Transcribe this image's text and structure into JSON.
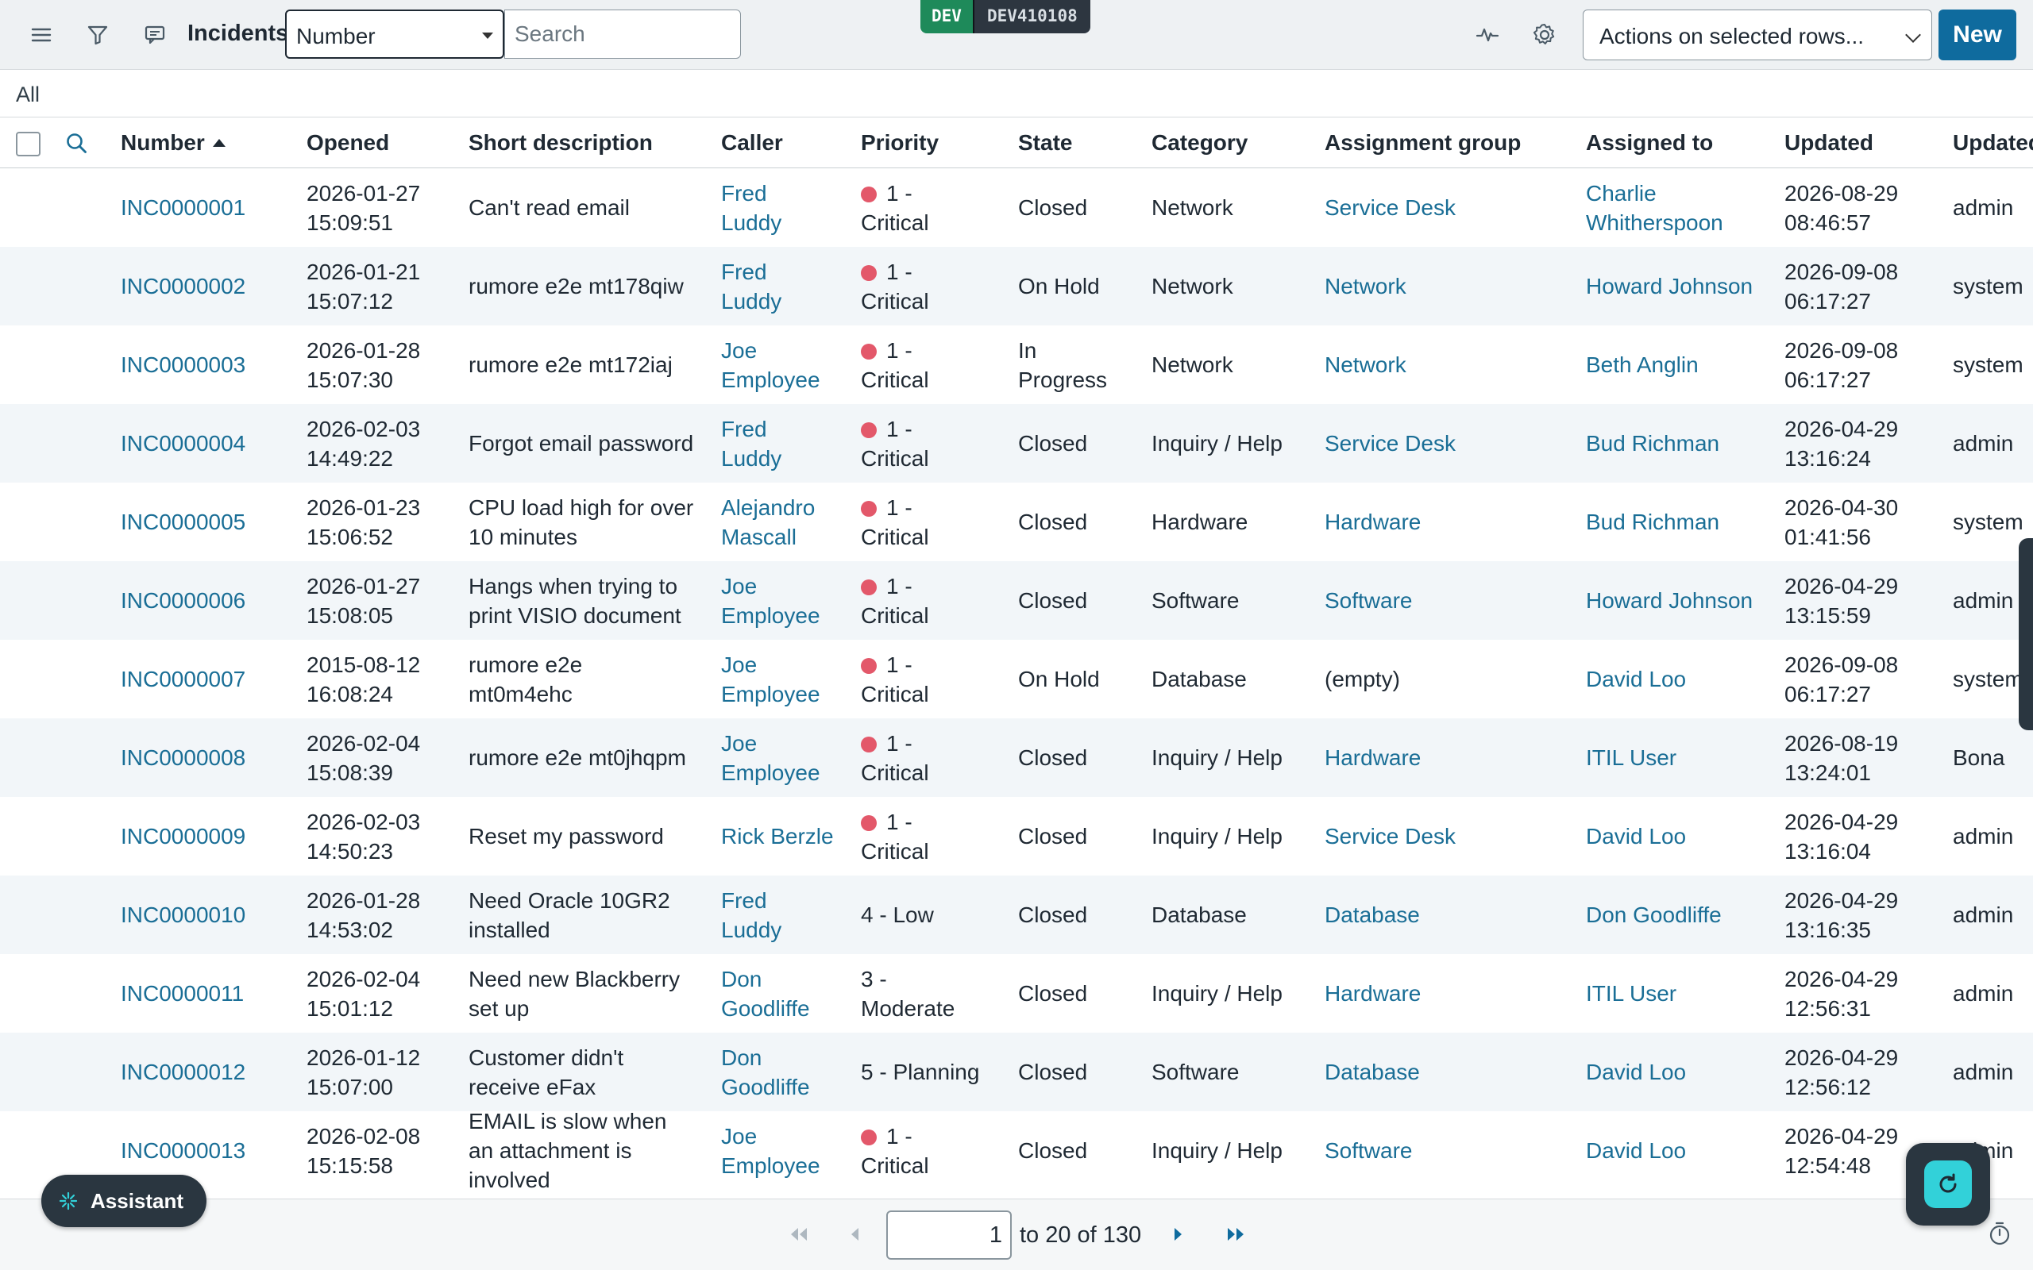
{
  "header": {
    "title": "Incidents",
    "search_field": "Number",
    "search_placeholder": "Search",
    "env_label": "DEV",
    "instance_label": "DEV410108",
    "actions_label": "Actions on selected rows...",
    "new_label": "New"
  },
  "breadcrumb": "All",
  "columns": {
    "number": "Number",
    "opened": "Opened",
    "short_description": "Short description",
    "caller": "Caller",
    "priority": "Priority",
    "state": "State",
    "category": "Category",
    "assignment_group": "Assignment group",
    "assigned_to": "Assigned to",
    "updated": "Updated",
    "updated_by": "Updated"
  },
  "rows": [
    {
      "number": "INC0000001",
      "opened": [
        "2026-01-27",
        "15:09:51"
      ],
      "desc": [
        "Can't read email"
      ],
      "caller": [
        "Fred",
        "Luddy"
      ],
      "priority": [
        "1 -",
        "Critical"
      ],
      "critical": true,
      "state": [
        "Closed"
      ],
      "category": "Network",
      "group": "Service Desk",
      "group_link": true,
      "assigned": [
        "Charlie",
        "Whitherspoon"
      ],
      "updated": [
        "2026-08-29",
        "08:46:57"
      ],
      "updated_by": "admin"
    },
    {
      "number": "INC0000002",
      "opened": [
        "2026-01-21",
        "15:07:12"
      ],
      "desc": [
        "rumore e2e mt178qiw"
      ],
      "caller": [
        "Fred",
        "Luddy"
      ],
      "priority": [
        "1 -",
        "Critical"
      ],
      "critical": true,
      "state": [
        "On Hold"
      ],
      "category": "Network",
      "group": "Network",
      "group_link": true,
      "assigned": [
        "Howard Johnson"
      ],
      "updated": [
        "2026-09-08",
        "06:17:27"
      ],
      "updated_by": "system"
    },
    {
      "number": "INC0000003",
      "opened": [
        "2026-01-28",
        "15:07:30"
      ],
      "desc": [
        "rumore e2e mt172iaj"
      ],
      "caller": [
        "Joe",
        "Employee"
      ],
      "priority": [
        "1 -",
        "Critical"
      ],
      "critical": true,
      "state": [
        "In",
        "Progress"
      ],
      "category": "Network",
      "group": "Network",
      "group_link": true,
      "assigned": [
        "Beth Anglin"
      ],
      "updated": [
        "2026-09-08",
        "06:17:27"
      ],
      "updated_by": "system"
    },
    {
      "number": "INC0000004",
      "opened": [
        "2026-02-03",
        "14:49:22"
      ],
      "desc": [
        "Forgot email password"
      ],
      "caller": [
        "Fred",
        "Luddy"
      ],
      "priority": [
        "1 -",
        "Critical"
      ],
      "critical": true,
      "state": [
        "Closed"
      ],
      "category": "Inquiry / Help",
      "group": "Service Desk",
      "group_link": true,
      "assigned": [
        "Bud Richman"
      ],
      "updated": [
        "2026-04-29",
        "13:16:24"
      ],
      "updated_by": "admin"
    },
    {
      "number": "INC0000005",
      "opened": [
        "2026-01-23",
        "15:06:52"
      ],
      "desc": [
        "CPU load high for over",
        "10 minutes"
      ],
      "caller": [
        "Alejandro",
        "Mascall"
      ],
      "priority": [
        "1 -",
        "Critical"
      ],
      "critical": true,
      "state": [
        "Closed"
      ],
      "category": "Hardware",
      "group": "Hardware",
      "group_link": true,
      "assigned": [
        "Bud Richman"
      ],
      "updated": [
        "2026-04-30",
        "01:41:56"
      ],
      "updated_by": "system"
    },
    {
      "number": "INC0000006",
      "opened": [
        "2026-01-27",
        "15:08:05"
      ],
      "desc": [
        "Hangs when trying to",
        "print VISIO document"
      ],
      "caller": [
        "Joe",
        "Employee"
      ],
      "priority": [
        "1 -",
        "Critical"
      ],
      "critical": true,
      "state": [
        "Closed"
      ],
      "category": "Software",
      "group": "Software",
      "group_link": true,
      "assigned": [
        "Howard Johnson"
      ],
      "updated": [
        "2026-04-29",
        "13:15:59"
      ],
      "updated_by": "admin"
    },
    {
      "number": "INC0000007",
      "opened": [
        "2015-08-12",
        "16:08:24"
      ],
      "desc": [
        "rumore e2e",
        "mt0m4ehc"
      ],
      "caller": [
        "Joe",
        "Employee"
      ],
      "priority": [
        "1 -",
        "Critical"
      ],
      "critical": true,
      "state": [
        "On Hold"
      ],
      "category": "Database",
      "group": "(empty)",
      "group_link": false,
      "assigned": [
        "David Loo"
      ],
      "updated": [
        "2026-09-08",
        "06:17:27"
      ],
      "updated_by": "system"
    },
    {
      "number": "INC0000008",
      "opened": [
        "2026-02-04",
        "15:08:39"
      ],
      "desc": [
        "rumore e2e mt0jhqpm"
      ],
      "caller": [
        "Joe",
        "Employee"
      ],
      "priority": [
        "1 -",
        "Critical"
      ],
      "critical": true,
      "state": [
        "Closed"
      ],
      "category": "Inquiry / Help",
      "group": "Hardware",
      "group_link": true,
      "assigned": [
        "ITIL User"
      ],
      "updated": [
        "2026-08-19",
        "13:24:01"
      ],
      "updated_by": "Bona"
    },
    {
      "number": "INC0000009",
      "opened": [
        "2026-02-03",
        "14:50:23"
      ],
      "desc": [
        "Reset my password"
      ],
      "caller": [
        "Rick Berzle"
      ],
      "priority": [
        "1 -",
        "Critical"
      ],
      "critical": true,
      "state": [
        "Closed"
      ],
      "category": "Inquiry / Help",
      "group": "Service Desk",
      "group_link": true,
      "assigned": [
        "David Loo"
      ],
      "updated": [
        "2026-04-29",
        "13:16:04"
      ],
      "updated_by": "admin"
    },
    {
      "number": "INC0000010",
      "opened": [
        "2026-01-28",
        "14:53:02"
      ],
      "desc": [
        "Need Oracle 10GR2",
        "installed"
      ],
      "caller": [
        "Fred",
        "Luddy"
      ],
      "priority": [
        "4 - Low"
      ],
      "critical": false,
      "state": [
        "Closed"
      ],
      "category": "Database",
      "group": "Database",
      "group_link": true,
      "assigned": [
        "Don Goodliffe"
      ],
      "updated": [
        "2026-04-29",
        "13:16:35"
      ],
      "updated_by": "admin"
    },
    {
      "number": "INC0000011",
      "opened": [
        "2026-02-04",
        "15:01:12"
      ],
      "desc": [
        "Need new Blackberry",
        "set up"
      ],
      "caller": [
        "Don",
        "Goodliffe"
      ],
      "priority": [
        "3 -",
        "Moderate"
      ],
      "critical": false,
      "state": [
        "Closed"
      ],
      "category": "Inquiry / Help",
      "group": "Hardware",
      "group_link": true,
      "assigned": [
        "ITIL User"
      ],
      "updated": [
        "2026-04-29",
        "12:56:31"
      ],
      "updated_by": "admin"
    },
    {
      "number": "INC0000012",
      "opened": [
        "2026-01-12",
        "15:07:00"
      ],
      "desc": [
        "Customer didn't",
        "receive eFax"
      ],
      "caller": [
        "Don",
        "Goodliffe"
      ],
      "priority": [
        "5 - Planning"
      ],
      "critical": false,
      "state": [
        "Closed"
      ],
      "category": "Software",
      "group": "Database",
      "group_link": true,
      "assigned": [
        "David Loo"
      ],
      "updated": [
        "2026-04-29",
        "12:56:12"
      ],
      "updated_by": "admin"
    },
    {
      "number": "INC0000013",
      "opened": [
        "2026-02-08",
        "15:15:58"
      ],
      "desc": [
        "EMAIL is slow when",
        "an attachment is",
        "involved"
      ],
      "caller": [
        "Joe",
        "Employee"
      ],
      "priority": [
        "1 -",
        "Critical"
      ],
      "critical": true,
      "state": [
        "Closed"
      ],
      "category": "Inquiry / Help",
      "group": "Software",
      "group_link": true,
      "assigned": [
        "David Loo"
      ],
      "updated": [
        "2026-04-29",
        "12:54:48"
      ],
      "updated_by": "admin"
    }
  ],
  "pager": {
    "current": "1",
    "range_text": "to 20 of 130"
  },
  "assistant_label": "Assistant",
  "colors": {
    "link": "#1a6e96",
    "primary": "#0f6b9e",
    "critical_dot": "#e3586a",
    "dev_badge": "#1e8a5a"
  }
}
